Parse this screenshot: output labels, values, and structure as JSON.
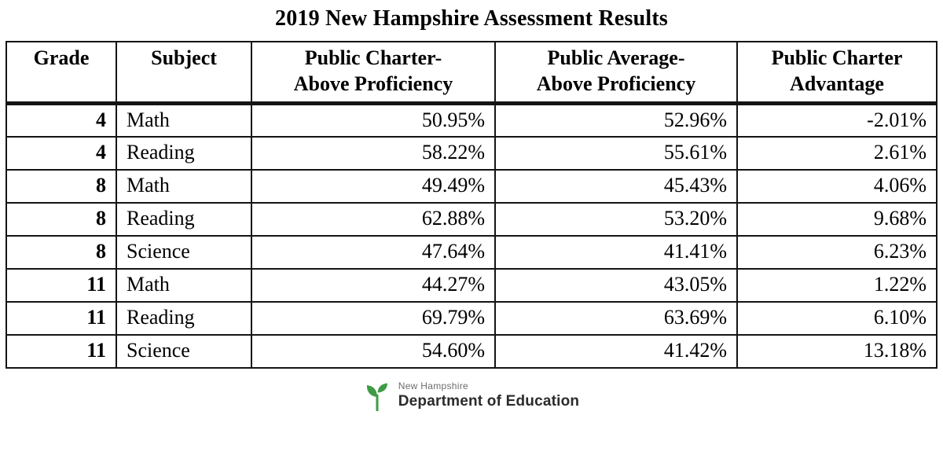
{
  "title": "2019 New Hampshire Assessment Results",
  "chart_data": {
    "type": "table",
    "title": "2019 New Hampshire Assessment Results",
    "columns": [
      "Grade",
      "Subject",
      "Public Charter-Above Proficiency",
      "Public Average-Above Proficiency",
      "Public Charter Advantage"
    ],
    "rows": [
      {
        "grade": 4,
        "subject": "Math",
        "public_charter_above_proficiency_pct": 50.95,
        "public_average_above_proficiency_pct": 52.96,
        "public_charter_advantage_pct": -2.01
      },
      {
        "grade": 4,
        "subject": "Reading",
        "public_charter_above_proficiency_pct": 58.22,
        "public_average_above_proficiency_pct": 55.61,
        "public_charter_advantage_pct": 2.61
      },
      {
        "grade": 8,
        "subject": "Math",
        "public_charter_above_proficiency_pct": 49.49,
        "public_average_above_proficiency_pct": 45.43,
        "public_charter_advantage_pct": 4.06
      },
      {
        "grade": 8,
        "subject": "Reading",
        "public_charter_above_proficiency_pct": 62.88,
        "public_average_above_proficiency_pct": 53.2,
        "public_charter_advantage_pct": 9.68
      },
      {
        "grade": 8,
        "subject": "Science",
        "public_charter_above_proficiency_pct": 47.64,
        "public_average_above_proficiency_pct": 41.41,
        "public_charter_advantage_pct": 6.23
      },
      {
        "grade": 11,
        "subject": "Math",
        "public_charter_above_proficiency_pct": 44.27,
        "public_average_above_proficiency_pct": 43.05,
        "public_charter_advantage_pct": 1.22
      },
      {
        "grade": 11,
        "subject": "Reading",
        "public_charter_above_proficiency_pct": 69.79,
        "public_average_above_proficiency_pct": 63.69,
        "public_charter_advantage_pct": 6.1
      },
      {
        "grade": 11,
        "subject": "Science",
        "public_charter_above_proficiency_pct": 54.6,
        "public_average_above_proficiency_pct": 41.42,
        "public_charter_advantage_pct": 13.18
      }
    ]
  },
  "table": {
    "headers": [
      "Grade",
      "Subject",
      "Public Charter-\nAbove Proficiency",
      "Public Average-\nAbove Proficiency",
      "Public Charter\nAdvantage"
    ],
    "rows": [
      [
        "4",
        "Math",
        "50.95%",
        "52.96%",
        "-2.01%"
      ],
      [
        "4",
        "Reading",
        "58.22%",
        "55.61%",
        "2.61%"
      ],
      [
        "8",
        "Math",
        "49.49%",
        "45.43%",
        "4.06%"
      ],
      [
        "8",
        "Reading",
        "62.88%",
        "53.20%",
        "9.68%"
      ],
      [
        "8",
        "Science",
        "47.64%",
        "41.41%",
        "6.23%"
      ],
      [
        "11",
        "Math",
        "44.27%",
        "43.05%",
        "1.22%"
      ],
      [
        "11",
        "Reading",
        "69.79%",
        "63.69%",
        "6.10%"
      ],
      [
        "11",
        "Science",
        "54.60%",
        "41.42%",
        "13.18%"
      ]
    ]
  },
  "footer": {
    "logo_small_text": "New Hampshire",
    "logo_name": "Department of Education",
    "logo_color": "#3f9c46"
  }
}
